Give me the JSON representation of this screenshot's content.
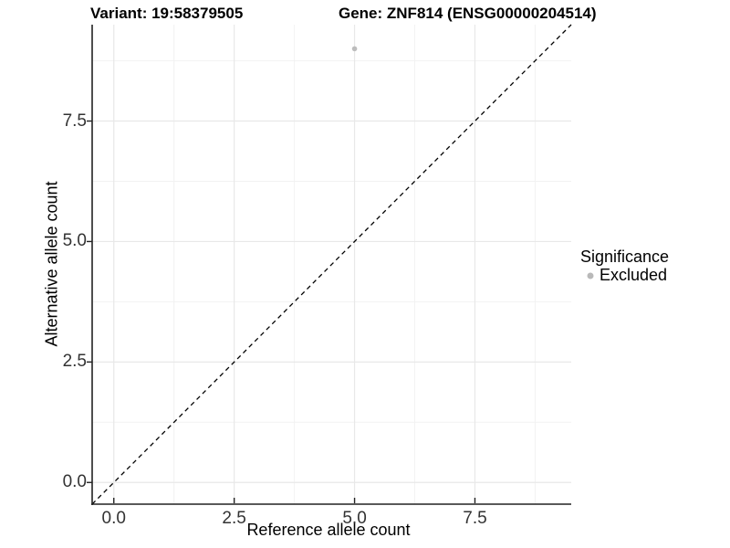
{
  "chart_data": {
    "type": "scatter",
    "titles": {
      "variant": "Variant: 19:58379505",
      "gene": "Gene: ZNF814 (ENSG00000204514)"
    },
    "xlabel": "Reference allele count",
    "ylabel": "Alternative allele count",
    "xlim": [
      -0.45,
      9.5
    ],
    "ylim": [
      -0.45,
      9.5
    ],
    "x_breaks": [
      0,
      2.5,
      5,
      7.5
    ],
    "y_breaks": [
      0,
      2.5,
      5,
      7.5
    ],
    "x_minor_breaks": [
      1.25,
      3.75,
      6.25,
      8.75
    ],
    "y_minor_breaks": [
      1.25,
      3.75,
      6.25,
      8.75
    ],
    "x_tick_labels": [
      "0.0",
      "2.5",
      "5.0",
      "7.5"
    ],
    "y_tick_labels": [
      "0.0",
      "2.5",
      "5.0",
      "7.5"
    ],
    "grid": true,
    "points": [
      {
        "x": 5,
        "y": 9,
        "series": "Excluded"
      }
    ],
    "reference_line": {
      "kind": "identity",
      "slope": 1,
      "intercept": 0,
      "style": "dashed",
      "color": "#000000"
    },
    "legend": {
      "title": "Significance",
      "position": "right",
      "items": [
        {
          "label": "Excluded",
          "color": "#b9b9b9",
          "marker": "circle"
        }
      ]
    },
    "colors": {
      "point": "#bdbdbd",
      "grid_major": "#e8e8e8",
      "grid_minor": "#f2f2f2",
      "axis_line": "#222222",
      "tick_mark": "#222222",
      "tick_text": "#333333",
      "title_text": "#000000"
    }
  }
}
